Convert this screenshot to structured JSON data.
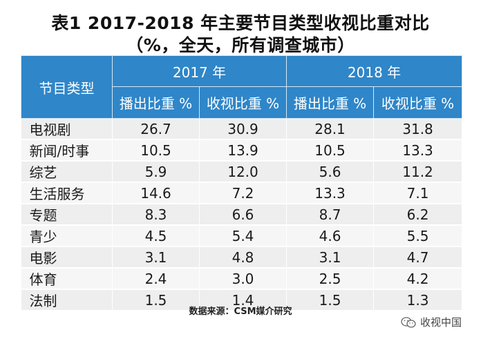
{
  "title_line1": "表1 2017-2018 年主要节目类型收视比重对比",
  "title_line2": "（%，全天，所有调查城市）",
  "source": "数据来源：CSM媒介研究",
  "watermark": "收视中国",
  "header": {
    "type": "节目类型",
    "year_2017": "2017 年",
    "year_2018": "2018 年",
    "broadcast_share": "播出比重 %",
    "viewing_share": "收视比重 %"
  },
  "chart_data": {
    "type": "table",
    "title": "表1 2017-2018 年主要节目类型收视比重对比",
    "columns": [
      "节目类型",
      "2017 播出比重 %",
      "2017 收视比重 %",
      "2018 播出比重 %",
      "2018 收视比重 %"
    ],
    "rows": [
      {
        "category": "电视剧",
        "values": [
          "26.7",
          "30.9",
          "28.1",
          "31.8"
        ]
      },
      {
        "category": "新闻/时事",
        "values": [
          "10.5",
          "13.9",
          "10.5",
          "13.3"
        ]
      },
      {
        "category": "综艺",
        "values": [
          "5.9",
          "12.0",
          "5.6",
          "11.2"
        ]
      },
      {
        "category": "生活服务",
        "values": [
          "14.6",
          "7.2",
          "13.3",
          "7.1"
        ]
      },
      {
        "category": "专题",
        "values": [
          "8.3",
          "6.6",
          "8.7",
          "6.2"
        ]
      },
      {
        "category": "青少",
        "values": [
          "4.5",
          "5.4",
          "4.6",
          "5.5"
        ]
      },
      {
        "category": "电影",
        "values": [
          "3.1",
          "4.8",
          "3.1",
          "4.7"
        ]
      },
      {
        "category": "体育",
        "values": [
          "2.4",
          "3.0",
          "2.5",
          "4.2"
        ]
      },
      {
        "category": "法制",
        "values": [
          "1.5",
          "1.4",
          "1.5",
          "1.3"
        ]
      }
    ]
  },
  "colors": {
    "header_bg": "#2f86c8",
    "row_odd": "#eeeeee",
    "row_even": "#f6f6f6"
  }
}
